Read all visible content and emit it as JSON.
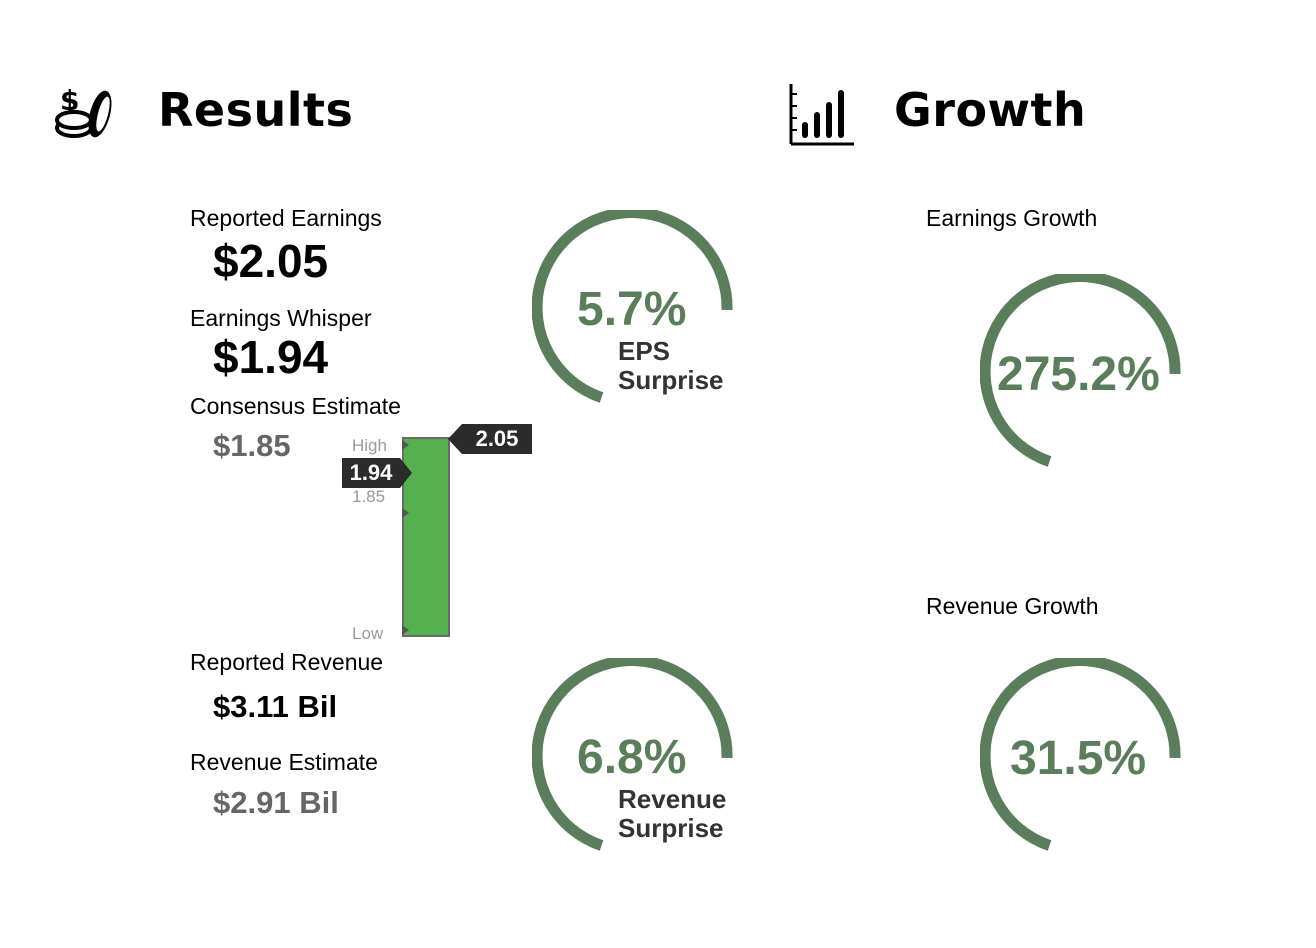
{
  "colors": {
    "gauge_green": "#5a7d5a",
    "bar_green": "#55b04f",
    "flag_dark": "#2b2b2b",
    "muted_grey": "#666666"
  },
  "results": {
    "title": "Results",
    "icon": "money-coins-icon",
    "reported_earnings": {
      "label": "Reported Earnings",
      "value": "$2.05"
    },
    "earnings_whisper": {
      "label": "Earnings Whisper",
      "value": "$1.94"
    },
    "consensus_estimate": {
      "label": "Consensus Estimate",
      "value": "$1.85"
    },
    "reported_revenue": {
      "label": "Reported Revenue",
      "value": "$3.11 Bil"
    },
    "revenue_estimate": {
      "label": "Revenue Estimate",
      "value": "$2.91 Bil"
    },
    "eps_surprise": {
      "value": "5.7%",
      "line1": "EPS",
      "line2": "Surprise"
    },
    "revenue_surprise": {
      "value": "6.8%",
      "line1": "Revenue",
      "line2": "Surprise"
    },
    "range_bar": {
      "high_label": "High",
      "low_label": "Low",
      "reported_flag": "2.05",
      "whisper_flag": "1.94",
      "consensus_tick": "1.85"
    }
  },
  "growth": {
    "title": "Growth",
    "icon": "bar-chart-icon",
    "earnings_growth": {
      "label": "Earnings Growth",
      "value": "275.2%"
    },
    "revenue_growth": {
      "label": "Revenue Growth",
      "value": "31.5%"
    }
  }
}
